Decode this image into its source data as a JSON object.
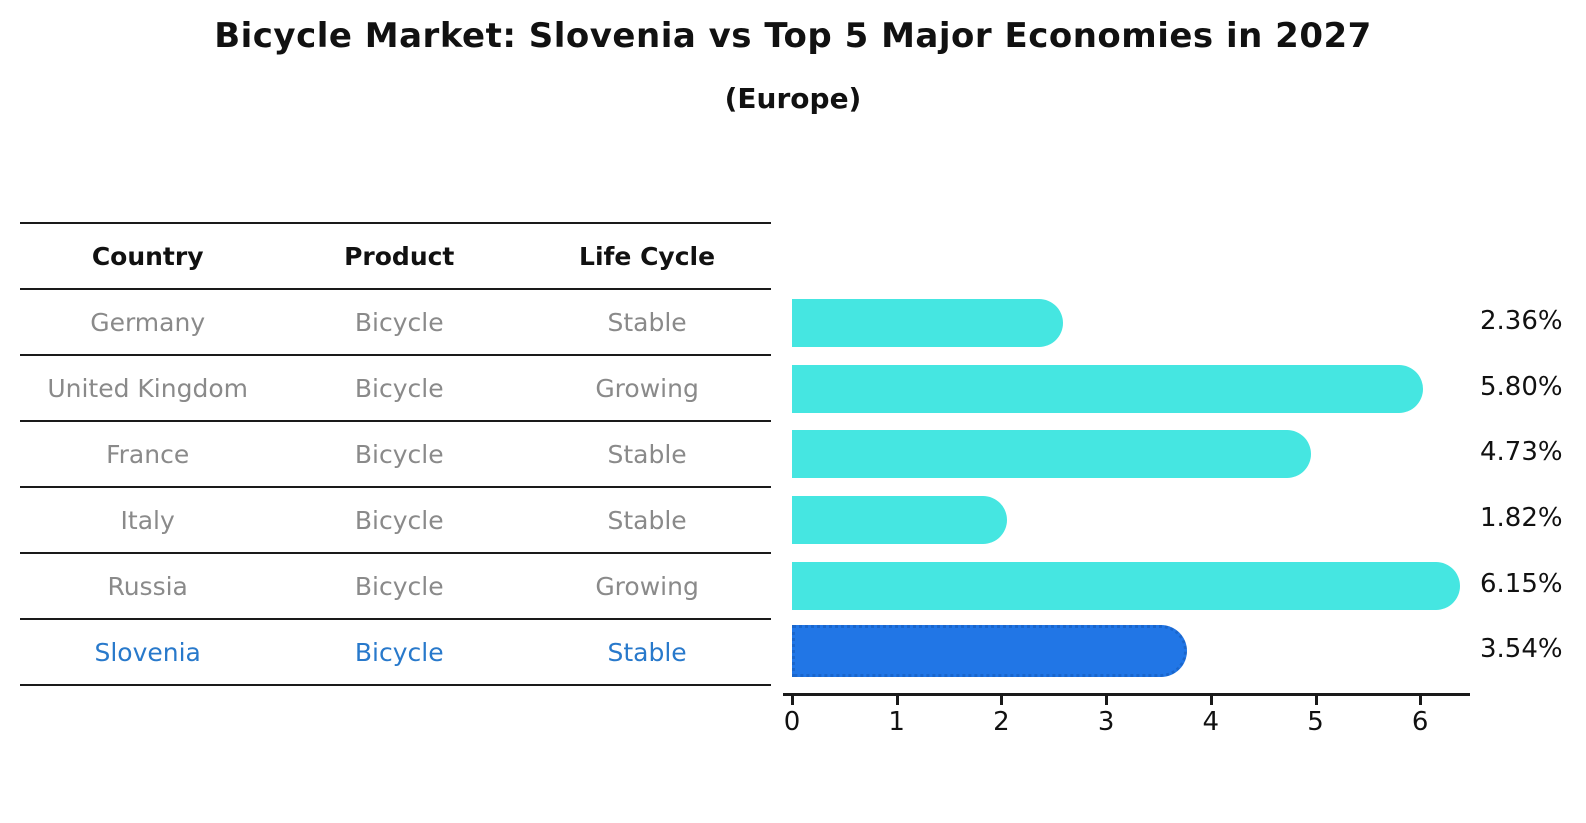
{
  "title": "Bicycle Market: Slovenia vs Top 5 Major Economies in 2027",
  "subtitle": "(Europe)",
  "colors": {
    "bar_default": "#45e6e1",
    "bar_highlight_fill": "#2176e6",
    "bar_highlight_border": "#1a66cc",
    "highlight_text": "#2879cb",
    "table_text": "#8a8a8a",
    "heading_text": "#111111"
  },
  "table": {
    "headers": [
      "Country",
      "Product",
      "Life Cycle"
    ],
    "rows": [
      {
        "country": "Germany",
        "product": "Bicycle",
        "life_cycle": "Stable",
        "highlighted": false
      },
      {
        "country": "United Kingdom",
        "product": "Bicycle",
        "life_cycle": "Growing",
        "highlighted": false
      },
      {
        "country": "France",
        "product": "Bicycle",
        "life_cycle": "Stable",
        "highlighted": false
      },
      {
        "country": "Italy",
        "product": "Bicycle",
        "life_cycle": "Stable",
        "highlighted": false
      },
      {
        "country": "Russia",
        "product": "Bicycle",
        "life_cycle": "Growing",
        "highlighted": false
      },
      {
        "country": "Slovenia",
        "product": "Bicycle",
        "life_cycle": "Stable",
        "highlighted": true
      }
    ]
  },
  "chart_data": {
    "type": "bar",
    "orientation": "horizontal",
    "title": "Bicycle Market: Slovenia vs Top 5 Major Economies in 2027",
    "subtitle": "(Europe)",
    "categories": [
      "Germany",
      "United Kingdom",
      "France",
      "Italy",
      "Russia",
      "Slovenia"
    ],
    "values": [
      2.36,
      5.8,
      4.73,
      1.82,
      6.15,
      3.54
    ],
    "value_labels": [
      "2.36%",
      "5.80%",
      "4.73%",
      "1.82%",
      "6.15%",
      "3.54%"
    ],
    "highlighted_category": "Slovenia",
    "xlabel": "",
    "ylabel": "",
    "xticks": [
      0,
      1,
      2,
      3,
      4,
      5,
      6
    ],
    "xlim": [
      0,
      6.5
    ],
    "grid": false,
    "legend": false
  }
}
